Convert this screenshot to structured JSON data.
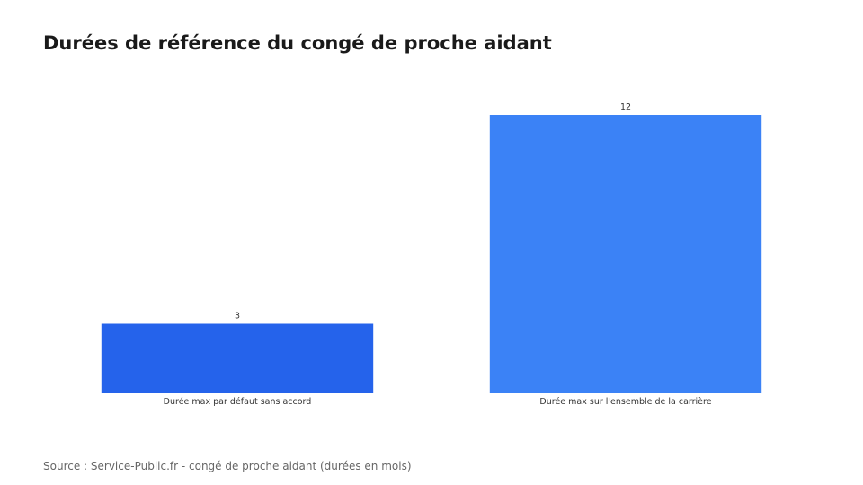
{
  "title": "Durées de référence du congé de proche aidant",
  "source": "Source : Service-Public.fr - congé de proche aidant (durées en mois)",
  "colors": {
    "background": "#ffffff",
    "title": "#1a1a1a",
    "source": "#666666",
    "label": "#333333"
  },
  "chart_data": {
    "type": "bar",
    "categories": [
      "Durée max par défaut sans accord",
      "Durée max sur l'ensemble de la carrière"
    ],
    "values": [
      3,
      12
    ],
    "value_labels": [
      "3",
      "12"
    ],
    "bar_colors": [
      "#2563eb",
      "#3b82f6"
    ],
    "xlabel": "",
    "ylabel": "",
    "ylim": [
      0,
      12
    ],
    "grid": false,
    "legend": "none"
  }
}
